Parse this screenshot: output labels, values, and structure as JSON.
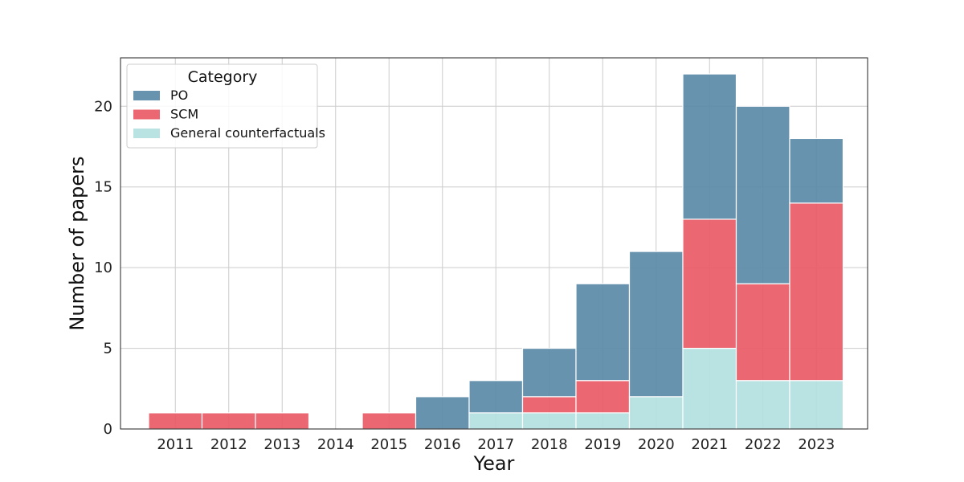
{
  "chart_data": {
    "type": "bar",
    "stacked": true,
    "categories": [
      "2011",
      "2012",
      "2013",
      "2014",
      "2015",
      "2016",
      "2017",
      "2018",
      "2019",
      "2020",
      "2021",
      "2022",
      "2023"
    ],
    "series": [
      {
        "name": "General counterfactuals",
        "color": "#b3dfdf",
        "values": [
          0,
          0,
          0,
          0,
          0,
          0,
          1,
          1,
          1,
          2,
          5,
          3,
          3
        ]
      },
      {
        "name": "SCM",
        "color": "#e95a66",
        "values": [
          1,
          1,
          1,
          0,
          1,
          0,
          0,
          1,
          2,
          0,
          8,
          6,
          11
        ]
      },
      {
        "name": "PO",
        "color": "#5b8aa8",
        "values": [
          0,
          0,
          0,
          0,
          0,
          2,
          2,
          3,
          6,
          9,
          9,
          11,
          4
        ]
      }
    ],
    "legend": {
      "title": "Category",
      "position": "top-left",
      "order": [
        "PO",
        "SCM",
        "General counterfactuals"
      ]
    },
    "xlabel": "Year",
    "ylabel": "Number of papers",
    "ylim": [
      0,
      23
    ],
    "yticks": [
      0,
      5,
      10,
      15,
      20
    ],
    "grid": true
  }
}
